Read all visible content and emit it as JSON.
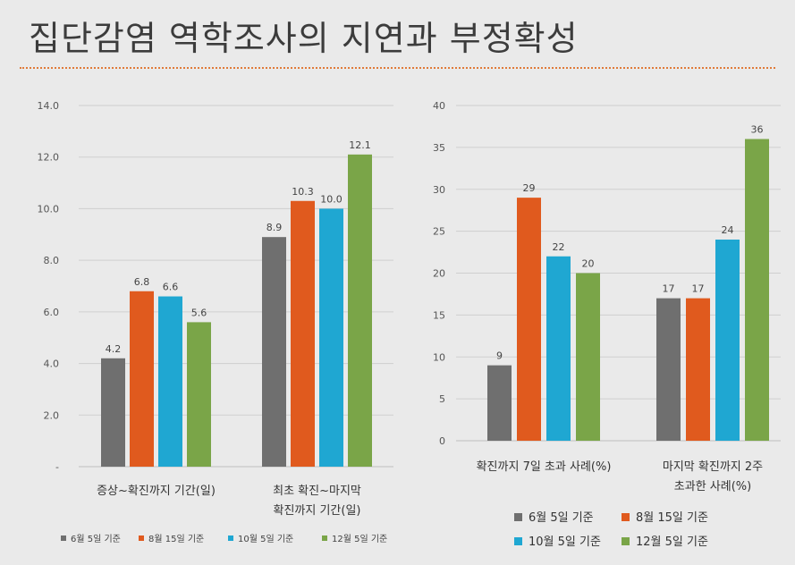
{
  "title": "집단감염 역학조사의 지연과 부정확성",
  "colors": [
    "#6f6f6f",
    "#e05a1e",
    "#1fa7d2",
    "#7aa548"
  ],
  "legend_entries": [
    "6월 5일 기준",
    "8월 15일 기준",
    "10월 5일 기준",
    "12월 5일 기준"
  ],
  "chart_data": [
    {
      "type": "bar",
      "categories": [
        "증상~확진까지 기간(일)",
        "최초 확진~마지막 확진까지 기간(일)"
      ],
      "category_lines": [
        [
          "증상~확진까지 기간(일)"
        ],
        [
          "최초 확진~마지막",
          "확진까지 기간(일)"
        ]
      ],
      "series": [
        {
          "name": "6월 5일 기준",
          "values": [
            4.2,
            8.9
          ]
        },
        {
          "name": "8월 15일 기준",
          "values": [
            6.8,
            10.3
          ]
        },
        {
          "name": "10월 5일 기준",
          "values": [
            6.6,
            10.0
          ]
        },
        {
          "name": "12월 5일 기준",
          "values": [
            5.6,
            12.1
          ]
        }
      ],
      "data_labels": [
        [
          "4.2",
          "8.9"
        ],
        [
          "6.8",
          "10.3"
        ],
        [
          "6.6",
          "10.0"
        ],
        [
          "5.6",
          "12.1"
        ]
      ],
      "ylim": [
        0,
        14
      ],
      "yticks": [
        "-",
        "2.0",
        "4.0",
        "6.0",
        "8.0",
        "10.0",
        "12.0",
        "14.0"
      ],
      "grid": true,
      "legend": "bottom"
    },
    {
      "type": "bar",
      "categories": [
        "확진까지 7일 초과 사례(%)",
        "마지막 확진까지 2주 초과한 사례(%)"
      ],
      "category_lines": [
        [
          "확진까지 7일 초과 사례(%)"
        ],
        [
          "마지막 확진까지 2주",
          "초과한 사례(%)"
        ]
      ],
      "series": [
        {
          "name": "6월 5일 기준",
          "values": [
            9,
            17
          ]
        },
        {
          "name": "8월 15일 기준",
          "values": [
            29,
            17
          ]
        },
        {
          "name": "10월 5일 기준",
          "values": [
            22,
            24
          ]
        },
        {
          "name": "12월 5일 기준",
          "values": [
            20,
            36
          ]
        }
      ],
      "ylim": [
        0,
        40
      ],
      "yticks": [
        "0",
        "5",
        "10",
        "15",
        "20",
        "25",
        "30",
        "35",
        "40"
      ],
      "grid": true,
      "legend": "bottom"
    }
  ]
}
